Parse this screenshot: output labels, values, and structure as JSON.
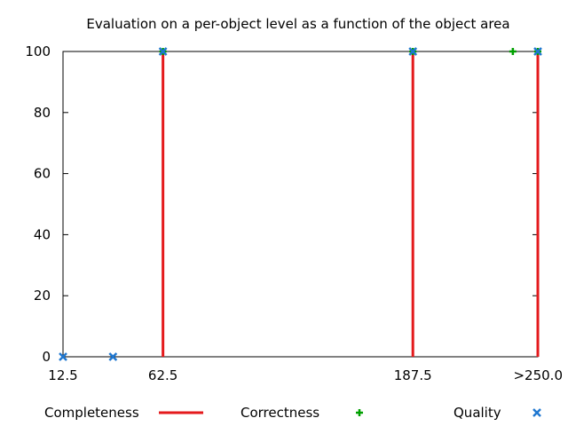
{
  "chart_data": {
    "type": "line",
    "title": "Evaluation on a per-object level as a function of the object area",
    "xlabel": "",
    "ylabel": "",
    "x_ticks": [
      "12.5",
      "62.5",
      "187.5",
      ">250.0"
    ],
    "x_tick_values": [
      12.5,
      62.5,
      187.5,
      250
    ],
    "xlim": [
      12.5,
      250
    ],
    "y_ticks": [
      "0",
      "20",
      "40",
      "60",
      "80",
      "100"
    ],
    "ylim": [
      0,
      100
    ],
    "grid": false,
    "legend_position": "bottom",
    "series": [
      {
        "name": "Completeness",
        "style": "impulses",
        "color": "#e41a1c",
        "points": [
          [
            12.5,
            0
          ],
          [
            37.5,
            0
          ],
          [
            62.5,
            100
          ],
          [
            187.5,
            100
          ],
          [
            250,
            100
          ]
        ]
      },
      {
        "name": "Correctness",
        "style": "points",
        "marker": "plus",
        "color": "#00a000",
        "points": [
          [
            62.5,
            100
          ],
          [
            187.5,
            100
          ],
          [
            237.5,
            100
          ],
          [
            250,
            100
          ]
        ]
      },
      {
        "name": "Quality",
        "style": "points",
        "marker": "cross",
        "color": "#1f77d0",
        "points": [
          [
            12.5,
            0
          ],
          [
            37.5,
            0
          ],
          [
            62.5,
            100
          ],
          [
            187.5,
            100
          ],
          [
            250,
            100
          ]
        ]
      }
    ]
  }
}
